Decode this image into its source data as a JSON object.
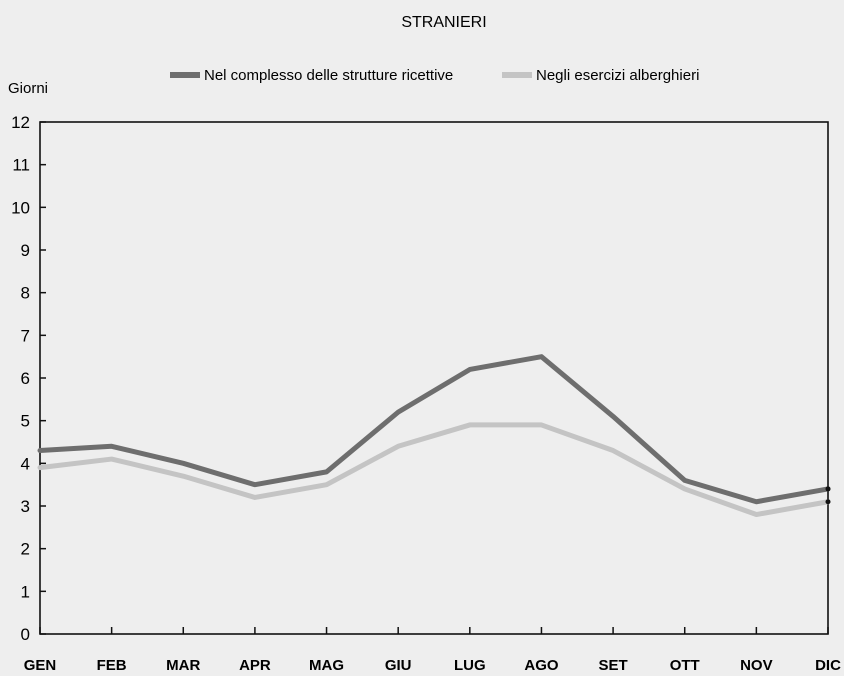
{
  "chart_data": {
    "type": "line",
    "title": "STRANIERI",
    "ylabel": "Giorni",
    "xlabel": "",
    "ylim": [
      0,
      12
    ],
    "yticks": [
      0,
      1,
      2,
      3,
      4,
      5,
      6,
      7,
      8,
      9,
      10,
      11,
      12
    ],
    "grid": false,
    "legend_position": "top",
    "categories": [
      "GEN",
      "FEB",
      "MAR",
      "APR",
      "MAG",
      "GIU",
      "LUG",
      "AGO",
      "SET",
      "OTT",
      "NOV",
      "DIC"
    ],
    "series": [
      {
        "name": "Nel complesso delle strutture ricettive",
        "color": "#6e6e6e",
        "values": [
          4.3,
          4.4,
          4.0,
          3.5,
          3.8,
          5.2,
          6.2,
          6.5,
          5.1,
          3.6,
          3.1,
          3.4
        ]
      },
      {
        "name": "Negli esercizi alberghieri",
        "color": "#c4c4c4",
        "values": [
          3.9,
          4.1,
          3.7,
          3.2,
          3.5,
          4.4,
          4.9,
          4.9,
          4.3,
          3.4,
          2.8,
          3.1
        ]
      }
    ]
  }
}
